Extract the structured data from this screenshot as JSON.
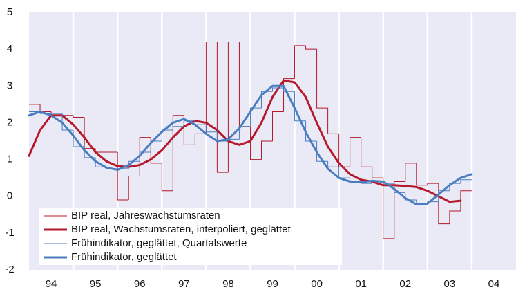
{
  "chart_data": {
    "type": "line",
    "x": [
      1994,
      1994.25,
      1994.5,
      1994.75,
      1995,
      1995.25,
      1995.5,
      1995.75,
      1996,
      1996.25,
      1996.5,
      1996.75,
      1997,
      1997.25,
      1997.5,
      1997.75,
      1998,
      1998.25,
      1998.5,
      1998.75,
      1999,
      1999.25,
      1999.5,
      1999.75,
      2000,
      2000.25,
      2000.5,
      2000.75,
      2001,
      2001.25,
      2001.5,
      2001.75,
      2002,
      2002.25,
      2002.5,
      2002.75,
      2003,
      2003.25,
      2003.5,
      2003.75,
      2004
    ],
    "series": [
      {
        "name": "BIP real, Jahreswachstumsraten",
        "color": "#b5172b",
        "style": "step",
        "width": 1,
        "values": [
          2.5,
          2.3,
          2.2,
          2.2,
          2.15,
          1.3,
          1.2,
          1.2,
          -0.1,
          0.55,
          1.6,
          0.9,
          0.15,
          2.2,
          1.4,
          1.7,
          4.2,
          0.65,
          4.2,
          1.9,
          1.0,
          1.5,
          2.3,
          3.2,
          4.1,
          4.0,
          2.4,
          1.7,
          0.8,
          1.6,
          0.8,
          0.5,
          -1.15,
          0.4,
          0.9,
          0.3,
          0.35,
          -0.75,
          -0.4,
          0.15,
          null
        ]
      },
      {
        "name": "BIP real, Wachstumsraten, interpoliert, geglättet",
        "color": "#b5172b",
        "style": "smooth",
        "width": 3,
        "values": [
          1.1,
          1.8,
          2.2,
          2.2,
          1.95,
          1.6,
          1.2,
          0.95,
          0.82,
          0.8,
          0.85,
          1.0,
          1.25,
          1.6,
          1.9,
          2.05,
          2.0,
          1.8,
          1.5,
          1.4,
          1.5,
          2.0,
          2.7,
          3.15,
          3.1,
          2.7,
          2.0,
          1.35,
          0.9,
          0.6,
          0.45,
          0.4,
          0.3,
          0.3,
          0.28,
          0.25,
          0.15,
          0.0,
          -0.15,
          -0.12,
          null
        ]
      },
      {
        "name": "Frühindikator, geglättet, Quartalswerte",
        "color": "#4a7cc0",
        "style": "step",
        "width": 1,
        "values": [
          2.3,
          2.25,
          2.25,
          1.8,
          1.35,
          1.05,
          0.8,
          0.75,
          0.75,
          0.95,
          1.2,
          1.5,
          1.8,
          1.9,
          2.05,
          1.95,
          1.75,
          1.5,
          1.55,
          1.9,
          2.4,
          2.85,
          2.95,
          2.85,
          2.05,
          1.5,
          0.95,
          0.8,
          0.5,
          0.4,
          0.35,
          0.4,
          0.35,
          0.1,
          -0.1,
          -0.2,
          -0.15,
          0.15,
          0.35,
          0.45,
          null
        ]
      },
      {
        "name": "Frühindikator, geglättet",
        "color": "#4a7cc0",
        "style": "smooth",
        "width": 3,
        "values": [
          2.2,
          2.3,
          2.2,
          2.0,
          1.65,
          1.25,
          0.95,
          0.78,
          0.72,
          0.85,
          1.1,
          1.45,
          1.75,
          2.0,
          2.1,
          1.95,
          1.7,
          1.5,
          1.55,
          1.85,
          2.3,
          2.75,
          3.0,
          3.0,
          2.4,
          1.75,
          1.2,
          0.75,
          0.5,
          0.4,
          0.38,
          0.42,
          0.4,
          0.2,
          -0.05,
          -0.22,
          -0.2,
          0.05,
          0.3,
          0.5,
          0.6
        ]
      }
    ],
    "xlim": [
      1994,
      2005
    ],
    "xticks": [
      {
        "value": 1994.5,
        "label": "94"
      },
      {
        "value": 1995.5,
        "label": "95"
      },
      {
        "value": 1996.5,
        "label": "96"
      },
      {
        "value": 1997.5,
        "label": "97"
      },
      {
        "value": 1998.5,
        "label": "98"
      },
      {
        "value": 1999.5,
        "label": "99"
      },
      {
        "value": 2000.5,
        "label": "00"
      },
      {
        "value": 2001.5,
        "label": "01"
      },
      {
        "value": 2002.5,
        "label": "02"
      },
      {
        "value": 2003.5,
        "label": "03"
      },
      {
        "value": 2004.5,
        "label": "04"
      }
    ],
    "xgrid": [
      1995,
      1996,
      1997,
      1998,
      1999,
      2000,
      2001,
      2002,
      2003,
      2004
    ],
    "ylim": [
      -2,
      5
    ],
    "yticks": [
      -2,
      -1,
      0,
      1,
      2,
      3,
      4,
      5
    ],
    "background": "#e9eaf6",
    "legend": "lower left"
  }
}
